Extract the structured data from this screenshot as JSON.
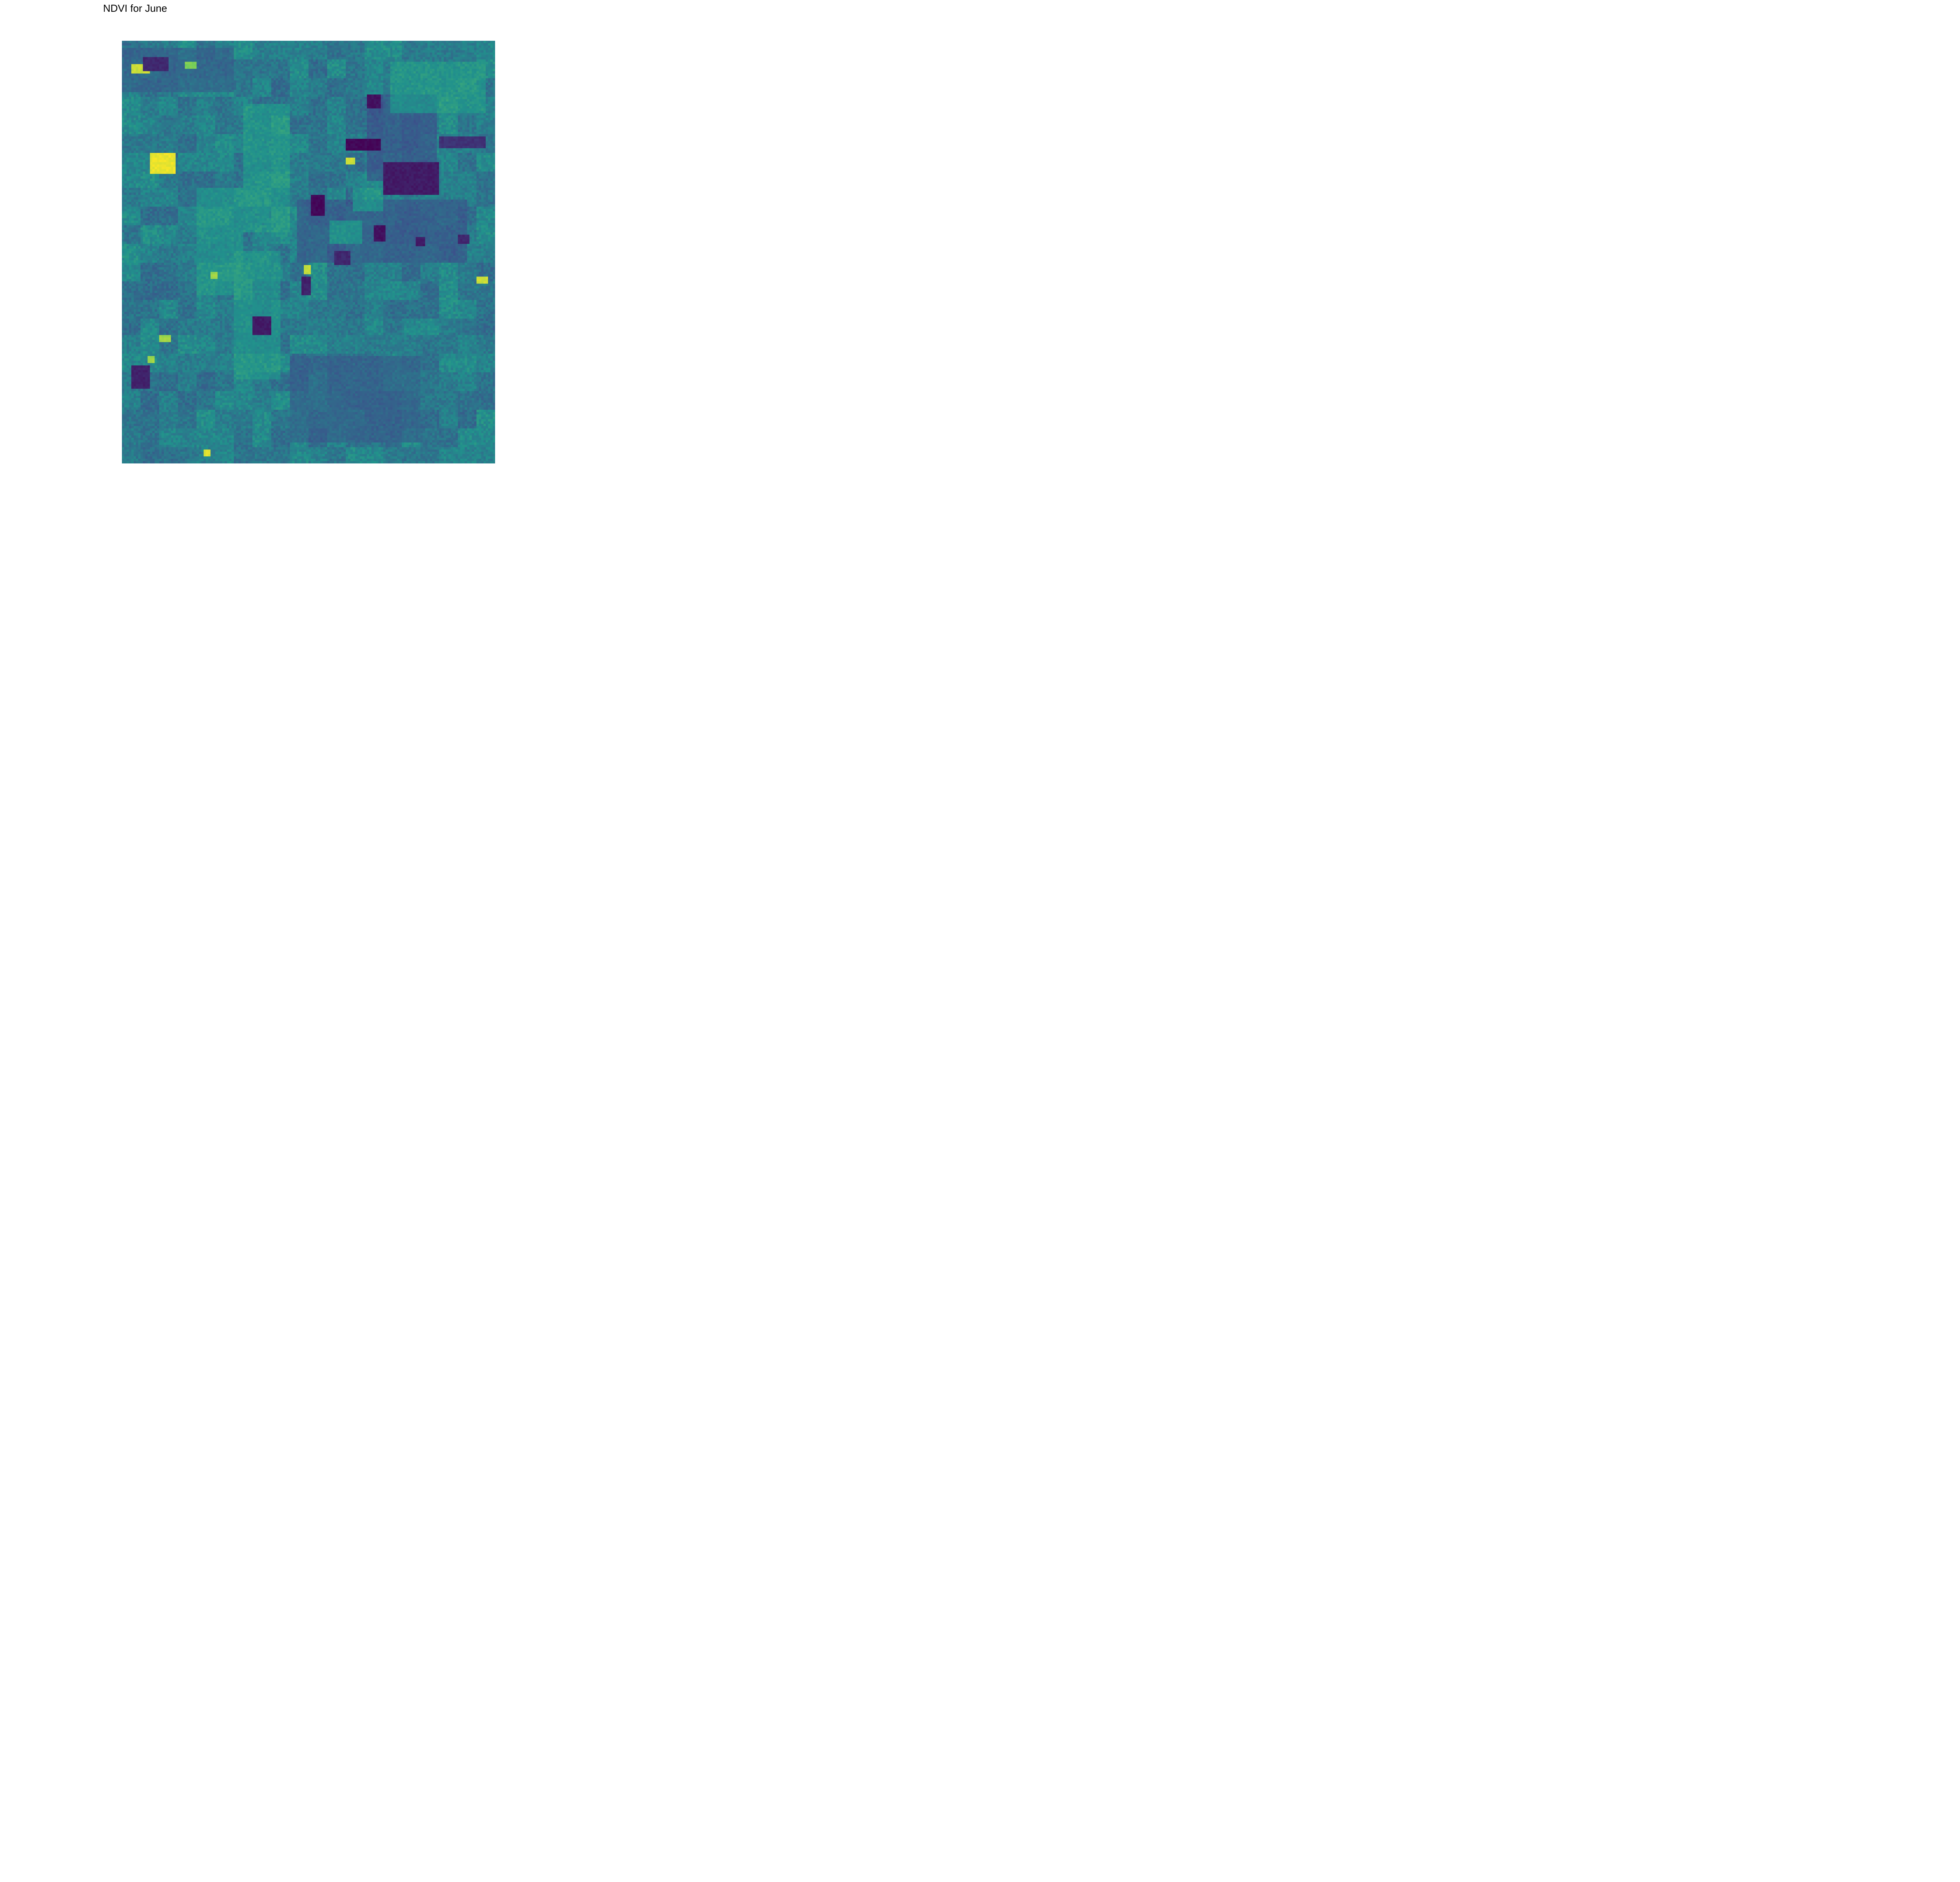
{
  "title": "NDVI for June",
  "raster": {
    "colormap": "viridis",
    "colormap_stops": [
      "#440154",
      "#3b528b",
      "#21918c",
      "#5ec962",
      "#fde725"
    ],
    "background_value": 0.42,
    "grid_cols": 160,
    "grid_rows": 181
  },
  "features": [
    {
      "kind": "bright",
      "label": "bright-patch",
      "value": 0.97,
      "at": [
        0.08,
        0.27,
        0.06,
        0.04
      ]
    },
    {
      "kind": "bright",
      "label": "bright-patch",
      "value": 0.92,
      "at": [
        0.03,
        0.06,
        0.04,
        0.015
      ]
    },
    {
      "kind": "bright",
      "label": "bright-patch",
      "value": 0.9,
      "at": [
        0.07,
        0.05,
        0.03,
        0.012
      ]
    },
    {
      "kind": "bright",
      "label": "bright-patch",
      "value": 0.8,
      "at": [
        0.17,
        0.05,
        0.03,
        0.012
      ]
    },
    {
      "kind": "bright",
      "label": "bright-patch",
      "value": 0.93,
      "at": [
        0.6,
        0.28,
        0.02,
        0.012
      ]
    },
    {
      "kind": "bright",
      "label": "bright-patch",
      "value": 0.9,
      "at": [
        0.49,
        0.535,
        0.015,
        0.012
      ]
    },
    {
      "kind": "bright",
      "label": "bright-patch",
      "value": 0.8,
      "at": [
        0.49,
        0.59,
        0.012,
        0.012
      ]
    },
    {
      "kind": "bright",
      "label": "bright-patch",
      "value": 0.92,
      "at": [
        0.95,
        0.56,
        0.03,
        0.012
      ]
    },
    {
      "kind": "bright",
      "label": "bright-patch",
      "value": 0.85,
      "at": [
        0.24,
        0.55,
        0.012,
        0.01
      ]
    },
    {
      "kind": "bright",
      "label": "bright-patch",
      "value": 0.85,
      "at": [
        0.1,
        0.7,
        0.03,
        0.01
      ]
    },
    {
      "kind": "bright",
      "label": "bright-patch",
      "value": 0.85,
      "at": [
        0.07,
        0.75,
        0.012,
        0.01
      ]
    },
    {
      "kind": "bright",
      "label": "bright-patch",
      "value": 0.95,
      "at": [
        0.22,
        0.97,
        0.015,
        0.012
      ]
    },
    {
      "kind": "dark",
      "label": "dark-patch",
      "value": 0.02,
      "at": [
        0.6,
        0.235,
        0.09,
        0.02
      ]
    },
    {
      "kind": "dark",
      "label": "dark-patch",
      "value": 0.08,
      "at": [
        0.7,
        0.29,
        0.15,
        0.07
      ]
    },
    {
      "kind": "dark",
      "label": "dark-patch",
      "value": 0.02,
      "at": [
        0.51,
        0.37,
        0.03,
        0.04
      ]
    },
    {
      "kind": "dark",
      "label": "dark-patch",
      "value": 0.05,
      "at": [
        0.68,
        0.44,
        0.025,
        0.03
      ]
    },
    {
      "kind": "dark",
      "label": "dark-patch",
      "value": 0.08,
      "at": [
        0.79,
        0.465,
        0.02,
        0.02
      ]
    },
    {
      "kind": "dark",
      "label": "dark-patch",
      "value": 0.08,
      "at": [
        0.35,
        0.655,
        0.05,
        0.04
      ]
    },
    {
      "kind": "dark",
      "label": "dark-patch",
      "value": 0.1,
      "at": [
        0.485,
        0.56,
        0.02,
        0.04
      ]
    },
    {
      "kind": "dark",
      "label": "dark-patch",
      "value": 0.12,
      "at": [
        0.06,
        0.04,
        0.06,
        0.03
      ]
    },
    {
      "kind": "dark",
      "label": "dark-patch",
      "value": 0.1,
      "at": [
        0.03,
        0.77,
        0.04,
        0.05
      ]
    },
    {
      "kind": "dark",
      "label": "dark-patch",
      "value": 0.12,
      "at": [
        0.57,
        0.5,
        0.04,
        0.03
      ]
    },
    {
      "kind": "dark",
      "label": "dark-patch",
      "value": 0.12,
      "at": [
        0.9,
        0.46,
        0.03,
        0.02
      ]
    },
    {
      "kind": "dark",
      "label": "dark-patch",
      "value": 0.15,
      "at": [
        0.85,
        0.23,
        0.12,
        0.02
      ]
    },
    {
      "kind": "dark",
      "label": "dark-patch",
      "value": 0.05,
      "at": [
        0.66,
        0.13,
        0.03,
        0.03
      ]
    }
  ],
  "regions": [
    {
      "label": "dark-field",
      "value": 0.22,
      "at": [
        0.66,
        0.13,
        0.18,
        0.2
      ]
    },
    {
      "label": "dark-field",
      "value": 0.24,
      "at": [
        0.47,
        0.38,
        0.45,
        0.14
      ]
    },
    {
      "label": "bright-corridor",
      "value": 0.58,
      "at": [
        0.33,
        0.15,
        0.12,
        0.3
      ]
    },
    {
      "label": "bright-corridor",
      "value": 0.56,
      "at": [
        0.2,
        0.35,
        0.12,
        0.25
      ]
    },
    {
      "label": "bright-corridor",
      "value": 0.56,
      "at": [
        0.3,
        0.5,
        0.12,
        0.3
      ]
    },
    {
      "label": "bright-field",
      "value": 0.6,
      "at": [
        0.56,
        0.43,
        0.08,
        0.05
      ]
    },
    {
      "label": "bright-field",
      "value": 0.58,
      "at": [
        0.62,
        0.35,
        0.08,
        0.05
      ]
    },
    {
      "label": "bright-field",
      "value": 0.58,
      "at": [
        0.72,
        0.05,
        0.25,
        0.12
      ]
    },
    {
      "label": "dark-field",
      "value": 0.28,
      "at": [
        0.45,
        0.75,
        0.35,
        0.2
      ]
    },
    {
      "label": "dark-field",
      "value": 0.28,
      "at": [
        0.0,
        0.02,
        0.3,
        0.1
      ]
    }
  ]
}
